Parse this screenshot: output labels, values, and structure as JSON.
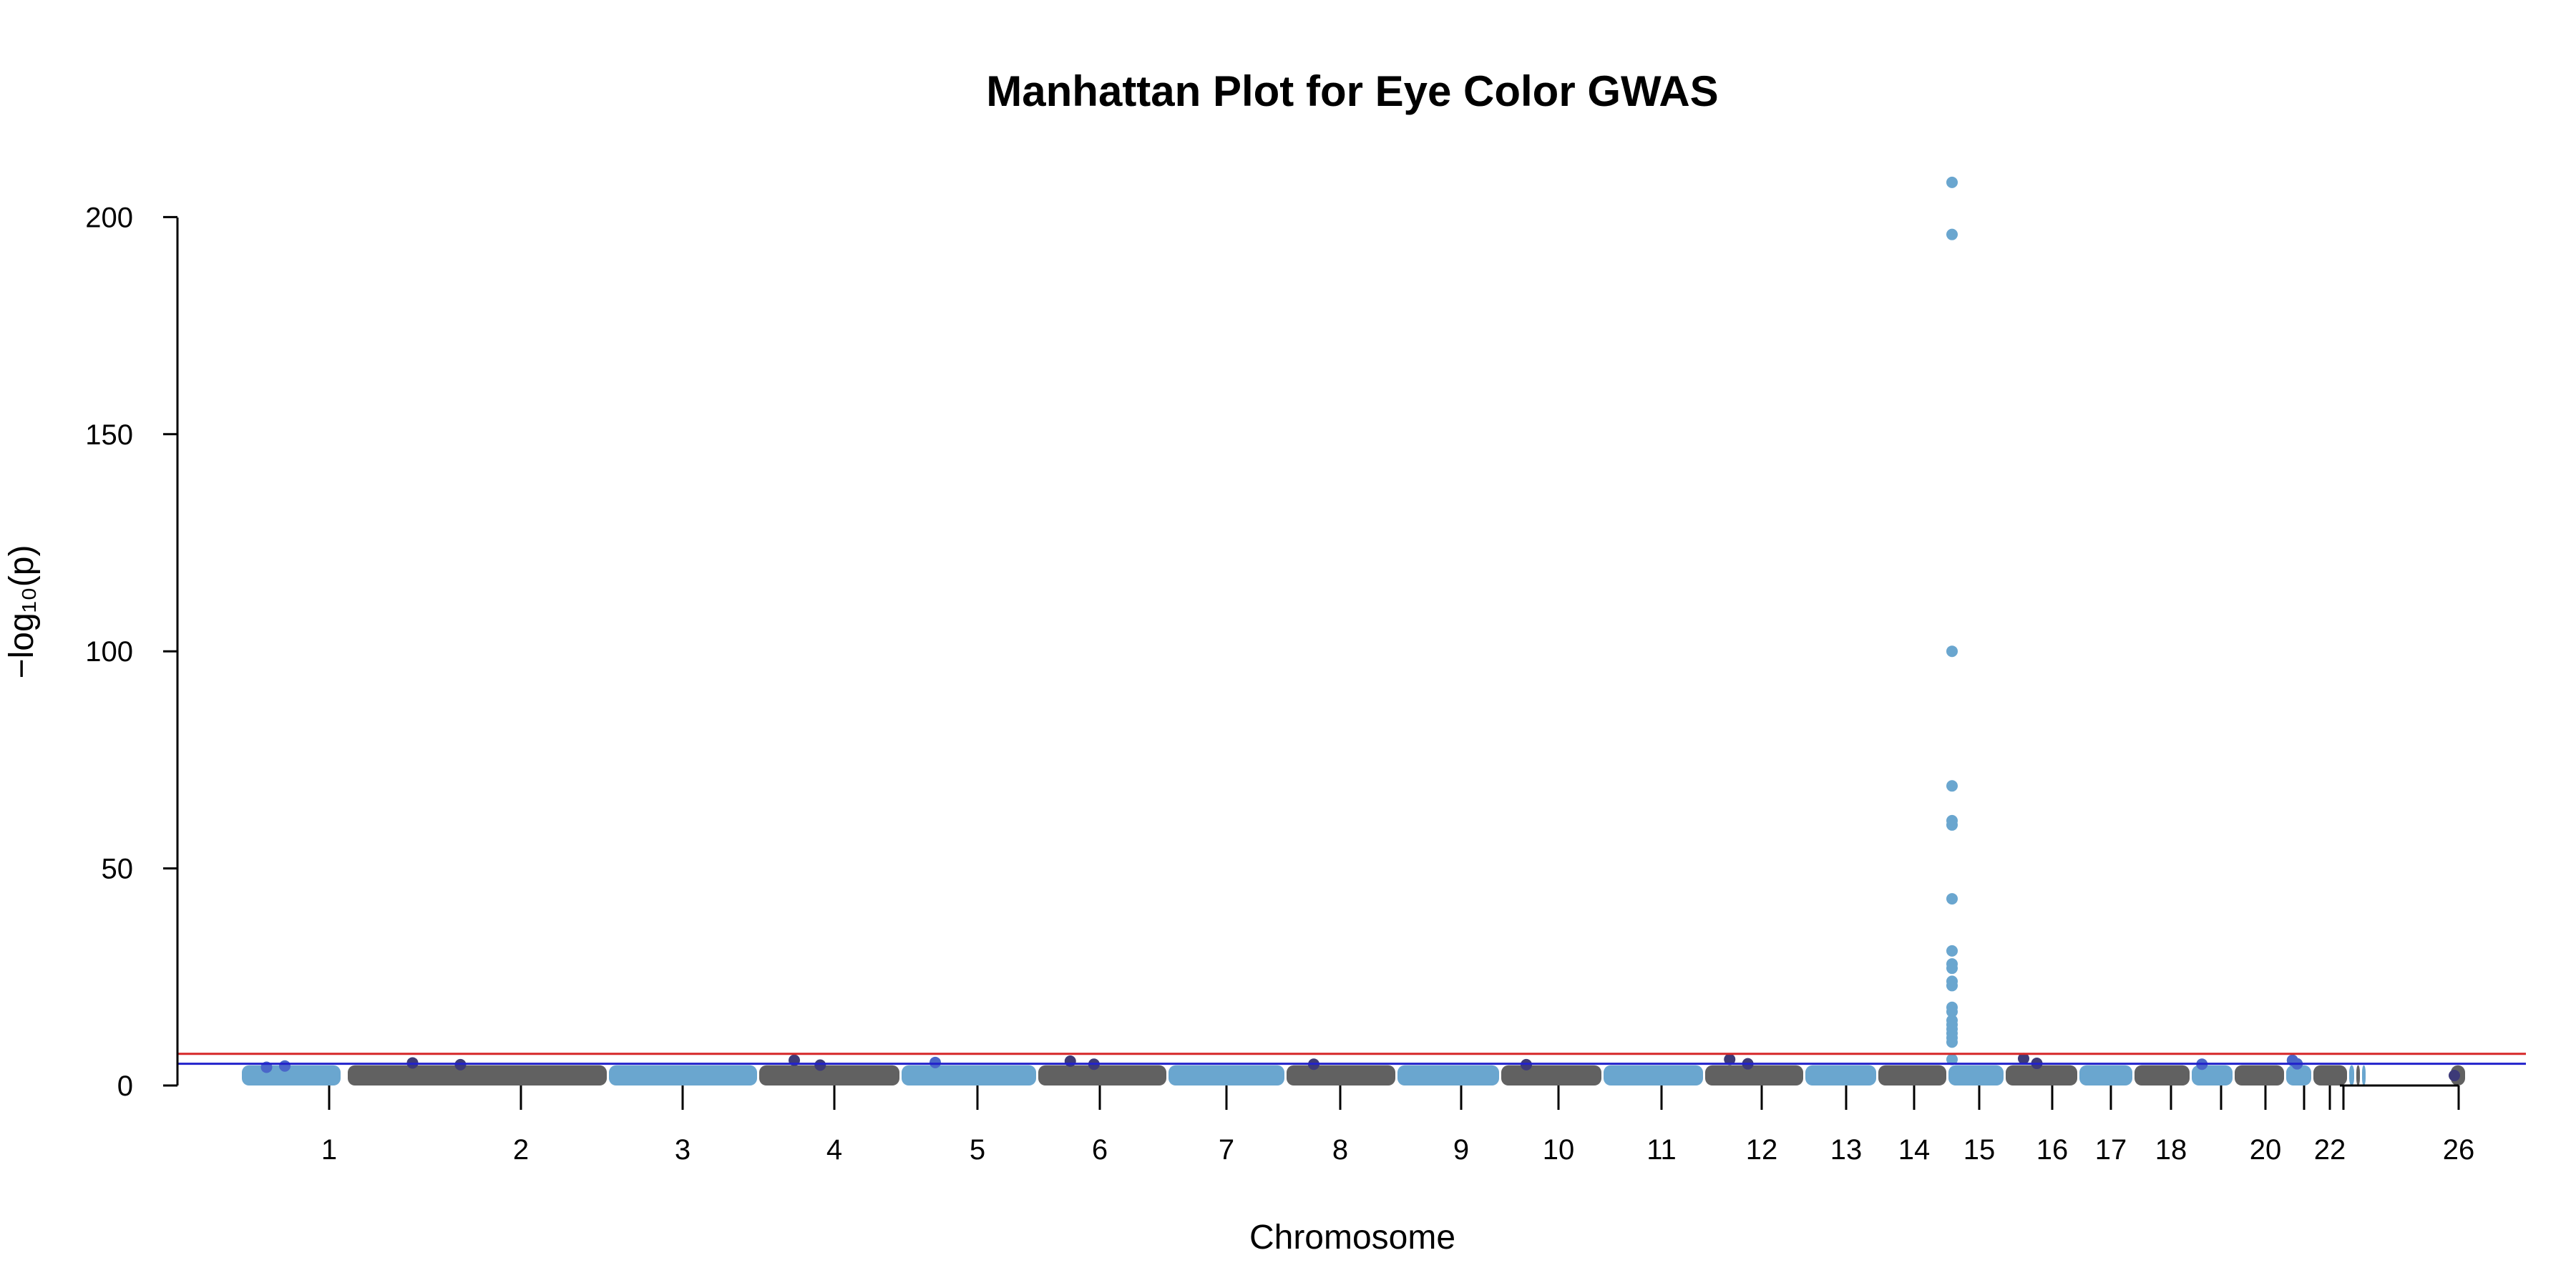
{
  "chart_data": {
    "type": "scatter",
    "title": "Manhattan Plot for Eye Color GWAS",
    "xlabel": "Chromosome",
    "ylabel": "−log₁₀(p)",
    "ylim": [
      0,
      200
    ],
    "y_ticks": [
      "0",
      "50",
      "100",
      "150",
      "200"
    ],
    "x_tick_labels": [
      "1",
      "2",
      "3",
      "4",
      "5",
      "6",
      "7",
      "8",
      "9",
      "10",
      "11",
      "12",
      "13",
      "14",
      "15",
      "16",
      "17",
      "18",
      "20",
      "22",
      "26"
    ],
    "series": [
      {
        "chromosomes": [
          "1",
          "2",
          "3",
          "4",
          "5",
          "6",
          "7",
          "8",
          "9",
          "10",
          "11",
          "12",
          "13",
          "14",
          "15",
          "16",
          "17",
          "18",
          "19",
          "20",
          "21",
          "22",
          "23",
          "24",
          "25",
          "26"
        ],
        "alternating_colors": [
          "#6aa6cf",
          "#616161"
        ],
        "baseline_neglog10p": [
          0,
          4
        ]
      }
    ],
    "peaks": [
      {
        "chromosome": "1",
        "values": [
          4.2,
          4.5
        ]
      },
      {
        "chromosome": "2",
        "values": [
          5.2,
          4.8
        ]
      },
      {
        "chromosome": "4",
        "values": [
          5.8,
          4.7
        ]
      },
      {
        "chromosome": "5",
        "values": [
          5.3
        ]
      },
      {
        "chromosome": "6",
        "values": [
          5.6,
          4.9
        ]
      },
      {
        "chromosome": "8",
        "values": [
          4.9
        ]
      },
      {
        "chromosome": "10",
        "values": [
          4.8
        ]
      },
      {
        "chromosome": "12",
        "values": [
          6.0,
          5.0
        ]
      },
      {
        "chromosome": "15",
        "values": [
          208,
          196,
          100,
          69,
          61,
          60,
          43,
          31,
          28,
          27,
          24,
          23,
          18,
          17,
          15,
          14,
          13,
          12,
          11,
          10,
          6
        ]
      },
      {
        "chromosome": "16",
        "values": [
          6.2,
          5.1
        ]
      },
      {
        "chromosome": "19",
        "values": [
          4.9
        ]
      },
      {
        "chromosome": "21",
        "values": [
          5.8,
          5.0
        ]
      },
      {
        "chromosome": "26",
        "values": [
          2.3
        ]
      }
    ],
    "threshold_lines": [
      {
        "value": 7.3,
        "color": "#d62728"
      },
      {
        "value": 5,
        "color": "#2222cc"
      }
    ],
    "grid": false,
    "legend": "none"
  }
}
